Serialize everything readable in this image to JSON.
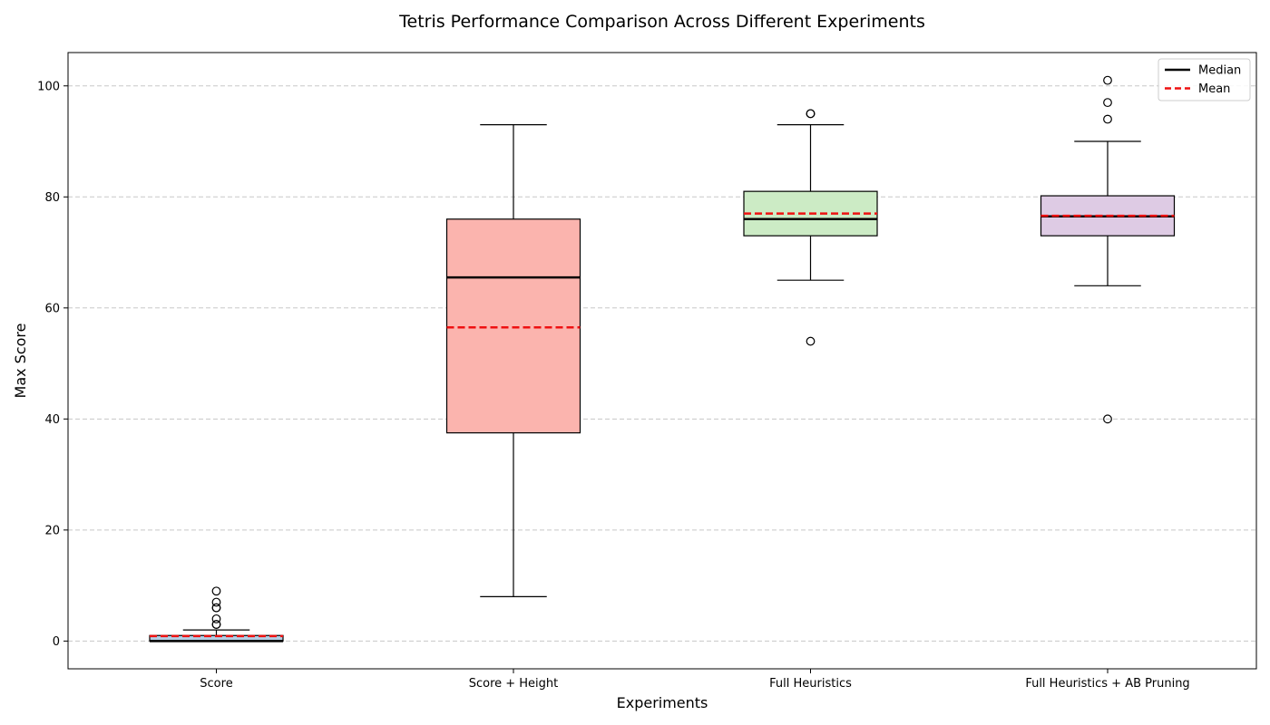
{
  "chart_data": {
    "type": "box",
    "title": "Tetris Performance Comparison Across Different Experiments",
    "xlabel": "Experiments",
    "ylabel": "Max Score",
    "ylim": [
      -5,
      106
    ],
    "yticks": [
      0,
      20,
      40,
      60,
      80,
      100
    ],
    "grid": "y-dashed",
    "legend": {
      "position": "top-right",
      "entries": [
        {
          "label": "Median",
          "style": "solid",
          "color": "#000000"
        },
        {
          "label": "Mean",
          "style": "dashed",
          "color": "#ee1111"
        }
      ]
    },
    "categories": [
      "Score",
      "Score + Height",
      "Full Heuristics",
      "Full Heuristics + AB Pruning"
    ],
    "boxes": [
      {
        "name": "Score",
        "whisker_low": 0,
        "q1": 0,
        "median": 0,
        "q3": 1,
        "whisker_high": 2,
        "mean": 0.9,
        "outliers": [
          3,
          3,
          4,
          6,
          6,
          7,
          9
        ],
        "color": "#b3cde3"
      },
      {
        "name": "Score + Height",
        "whisker_low": 8,
        "q1": 37.5,
        "median": 65.5,
        "q3": 76,
        "whisker_high": 93,
        "mean": 56.5,
        "outliers": [],
        "color": "#fbb4ae"
      },
      {
        "name": "Full Heuristics",
        "whisker_low": 65,
        "q1": 73,
        "median": 76,
        "q3": 81,
        "whisker_high": 93,
        "mean": 77,
        "outliers": [
          54,
          95,
          95
        ],
        "color": "#ccebc5"
      },
      {
        "name": "Full Heuristics + AB Pruning",
        "whisker_low": 64,
        "q1": 73,
        "median": 76.5,
        "q3": 80.2,
        "whisker_high": 90,
        "mean": 76.6,
        "outliers": [
          40,
          94,
          97,
          101
        ],
        "color": "#decbe4"
      }
    ]
  }
}
